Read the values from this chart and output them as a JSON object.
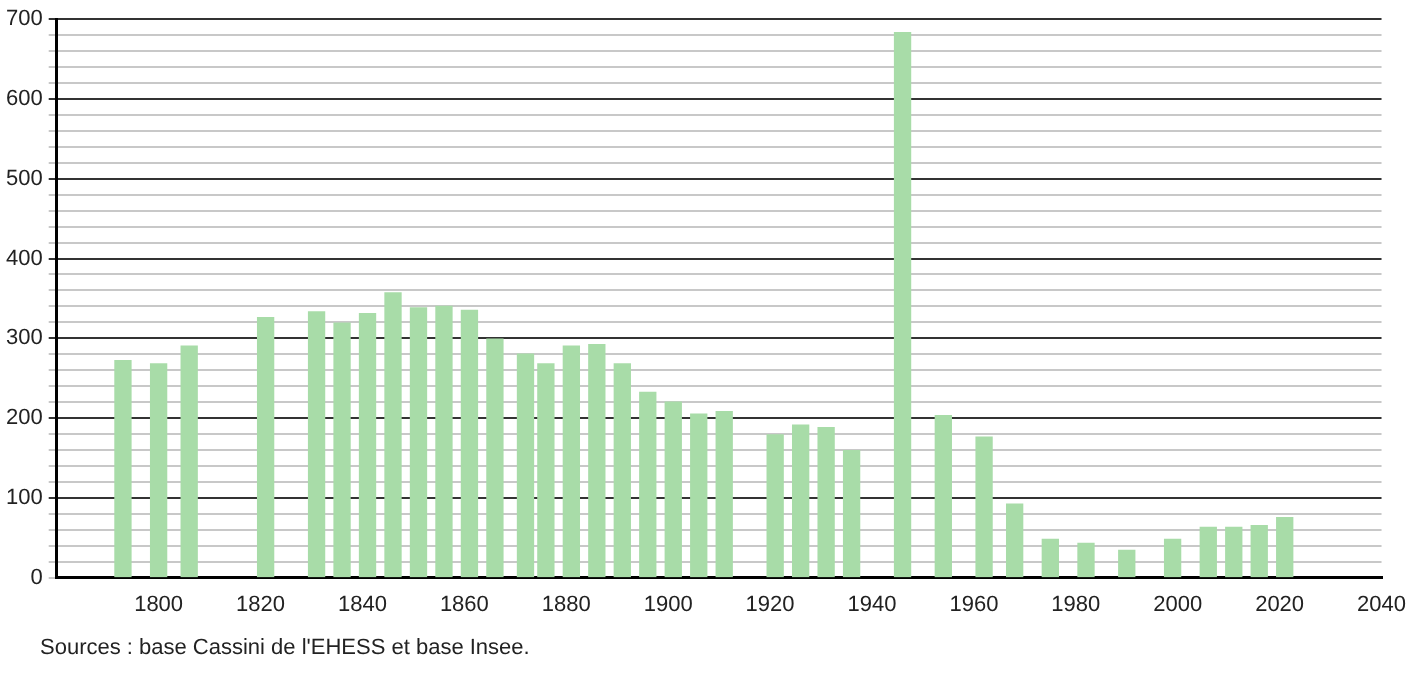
{
  "chart_data": {
    "type": "bar",
    "color": "#a8dca8",
    "x": [
      1793,
      1800,
      1806,
      1821,
      1831,
      1836,
      1841,
      1846,
      1851,
      1856,
      1861,
      1866,
      1872,
      1876,
      1881,
      1886,
      1891,
      1896,
      1901,
      1906,
      1911,
      1921,
      1926,
      1931,
      1936,
      1946,
      1954,
      1962,
      1968,
      1975,
      1982,
      1990,
      1999,
      2006,
      2011,
      2016,
      2021
    ],
    "values": [
      272,
      268,
      290,
      326,
      333,
      319,
      331,
      357,
      338,
      340,
      335,
      299,
      280,
      268,
      290,
      292,
      268,
      232,
      220,
      205,
      208,
      179,
      191,
      188,
      159,
      683,
      203,
      176,
      92,
      48,
      43,
      34,
      48,
      63,
      63,
      65,
      75
    ],
    "xlim": [
      1780,
      2040
    ],
    "xticks": [
      1800,
      1820,
      1840,
      1860,
      1880,
      1900,
      1920,
      1940,
      1960,
      1980,
      2000,
      2020,
      2040
    ],
    "ylim": [
      0,
      700
    ],
    "yticks": [
      0,
      {
        "value": 20,
        "label": null
      },
      {
        "value": 40,
        "label": null
      },
      {
        "value": 60,
        "label": null
      },
      {
        "value": 80,
        "label": null
      },
      100,
      {
        "value": 120,
        "label": null
      },
      {
        "value": 140,
        "label": null
      },
      {
        "value": 160,
        "label": null
      },
      {
        "value": 180,
        "label": null
      },
      200,
      {
        "value": 220,
        "label": null
      },
      {
        "value": 240,
        "label": null
      },
      {
        "value": 260,
        "label": null
      },
      {
        "value": 280,
        "label": null
      },
      300,
      {
        "value": 320,
        "label": null
      },
      {
        "value": 340,
        "label": null
      },
      {
        "value": 360,
        "label": null
      },
      {
        "value": 380,
        "label": null
      },
      400,
      {
        "value": 420,
        "label": null
      },
      {
        "value": 440,
        "label": null
      },
      {
        "value": 460,
        "label": null
      },
      {
        "value": 480,
        "label": null
      },
      500,
      {
        "value": 520,
        "label": null
      },
      {
        "value": 540,
        "label": null
      },
      {
        "value": 560,
        "label": null
      },
      {
        "value": 580,
        "label": null
      },
      600,
      {
        "value": 620,
        "label": null
      },
      {
        "value": 640,
        "label": null
      },
      {
        "value": 660,
        "label": null
      },
      {
        "value": 680,
        "label": null
      },
      700
    ],
    "grid": "y",
    "legend": false,
    "annotations": [
      "Sources : base Cassini de l'EHESS et base Insee."
    ]
  }
}
